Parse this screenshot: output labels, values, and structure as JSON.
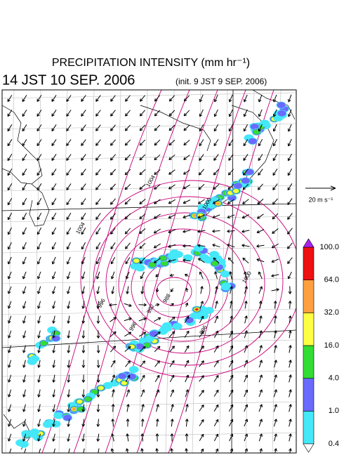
{
  "header": {
    "title": "PRECIPITATION INTENSITY (mm hr⁻¹)",
    "time": "14 JST 10 SEP. 2006",
    "init": "(init. 9 JST 9 SEP. 2006)"
  },
  "reference_vector": {
    "label": "20 m s⁻¹"
  },
  "colorbar": {
    "levels": [
      {
        "value": 0.4,
        "label": "0.4"
      },
      {
        "value": 1,
        "label": "1.0"
      },
      {
        "value": 4,
        "label": "4.0"
      },
      {
        "value": 16,
        "label": "16.0"
      },
      {
        "value": 32,
        "label": "32.0"
      },
      {
        "value": 64,
        "label": "64.0"
      },
      {
        "value": 100,
        "label": "100.0"
      }
    ],
    "colors": [
      "#44e8f8",
      "#6a6aff",
      "#33dd33",
      "#ffff44",
      "#ffa040",
      "#ee1111"
    ],
    "under_color": "#ffffff",
    "over_color": "#aa22ee"
  },
  "map": {
    "contour_labels": [
      "1004",
      "1004",
      "1000",
      "996",
      "992",
      "988",
      "996",
      "1000",
      "996"
    ]
  }
}
